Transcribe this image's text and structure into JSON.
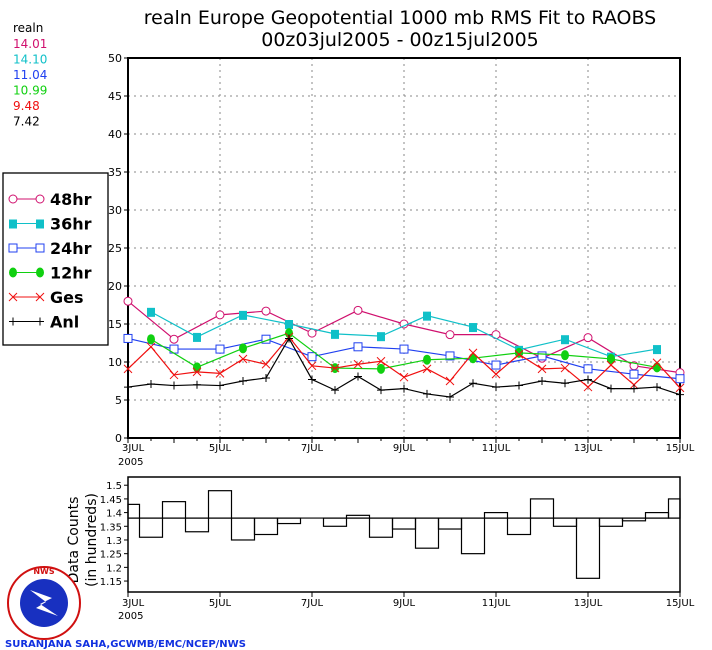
{
  "title_line1": "realn Europe Geopotential 1000 mb RMS Fit to RAOBS",
  "title_line2": "00z03jul2005 - 00z15jul2005",
  "stats": {
    "label": "realn",
    "values": [
      {
        "text": "14.01",
        "color": "#d0106e"
      },
      {
        "text": "14.10",
        "color": "#10c0c8"
      },
      {
        "text": "11.04",
        "color": "#2040f0"
      },
      {
        "text": "10.99",
        "color": "#10d010"
      },
      {
        "text": "9.48",
        "color": "#f01010"
      },
      {
        "text": "7.42",
        "color": "#000000"
      }
    ]
  },
  "x_ticks": [
    "3JUL",
    "5JUL",
    "7JUL",
    "9JUL",
    "11JUL",
    "13JUL",
    "15JUL"
  ],
  "x_year": "2005",
  "credit": "SURANJANA SAHA,GCWMB/EMC/NCEP/NWS",
  "logo_text": "NATIONAL WEATHER SERVICE",
  "chart_data": [
    {
      "type": "line",
      "title": "realn Europe Geopotential 1000 mb RMS Fit to RAOBS",
      "x_unit": "days since 00z03jul2005",
      "xlim": [
        0,
        12
      ],
      "ylim": [
        0,
        50
      ],
      "y_ticks": [
        0,
        5,
        10,
        15,
        20,
        25,
        30,
        35,
        40,
        45,
        50
      ],
      "grid": true,
      "legend_placement": "left",
      "series": [
        {
          "name": "48hr",
          "color": "#d0106e",
          "marker": "open-circle",
          "x0": 0,
          "step": 1,
          "values": [
            18,
            13,
            16.2,
            16.7,
            13.8,
            16.8,
            15,
            13.6,
            13.6,
            10.5,
            13.2,
            9.5,
            8.6
          ]
        },
        {
          "name": "36hr",
          "color": "#10c0c8",
          "marker": "filled-square",
          "x0": 0.5,
          "step": 1,
          "values": [
            16.6,
            13.3,
            16.2,
            15,
            13.7,
            13.4,
            16.1,
            14.6,
            11.6,
            13.0,
            10.7,
            11.7
          ]
        },
        {
          "name": "24hr",
          "color": "#2040f0",
          "marker": "open-square",
          "x0": 0,
          "step": 1,
          "values": [
            13.1,
            11.7,
            11.7,
            13,
            10.7,
            12,
            11.7,
            10.8,
            9.6,
            10.8,
            9.1,
            8.4,
            7.8
          ]
        },
        {
          "name": "12hr",
          "color": "#10d010",
          "marker": "filled-circle",
          "x0": 0.5,
          "step": 1,
          "values": [
            13,
            9.3,
            11.8,
            13.8,
            9.2,
            9.1,
            10.3,
            10.5,
            11.2,
            10.9,
            10.4,
            9.3
          ]
        },
        {
          "name": "Ges",
          "color": "#f01010",
          "marker": "x",
          "x0": 0,
          "step": 0.5,
          "values": [
            9.1,
            12,
            8.3,
            8.7,
            8.5,
            10.4,
            9.7,
            13.3,
            9.5,
            9.2,
            9.7,
            10.1,
            8,
            9.1,
            7.5,
            11.2,
            8.4,
            11,
            9.1,
            9.2,
            6.7,
            9.6,
            7,
            9.9,
            6.6
          ]
        },
        {
          "name": "Anl",
          "color": "#000000",
          "marker": "plus",
          "x0": 0,
          "step": 0.5,
          "values": [
            6.7,
            7.1,
            6.9,
            7.0,
            6.9,
            7.5,
            7.9,
            13.1,
            7.7,
            6.3,
            8.1,
            6.3,
            6.5,
            5.8,
            5.4,
            7.2,
            6.7,
            6.9,
            7.5,
            7.2,
            7.7,
            6.5,
            6.5,
            6.7,
            5.7
          ]
        }
      ]
    },
    {
      "type": "bar",
      "ylabel": "Data Counts",
      "ylabel2": "(in hundreds)",
      "x0": 0,
      "step": 0.5,
      "ylim": [
        1.11,
        1.53
      ],
      "y_ticks": [
        "1.15",
        "1.2",
        "1.25",
        "1.3",
        "1.35",
        "1.4",
        "1.45",
        "1.5"
      ],
      "reference": 1.38,
      "values": [
        1.43,
        1.31,
        1.44,
        1.33,
        1.48,
        1.3,
        1.32,
        1.36,
        1.38,
        1.35,
        1.39,
        1.31,
        1.34,
        1.27,
        1.34,
        1.25,
        1.4,
        1.32,
        1.45,
        1.35,
        1.16,
        1.35,
        1.37,
        1.4,
        1.45
      ]
    }
  ]
}
